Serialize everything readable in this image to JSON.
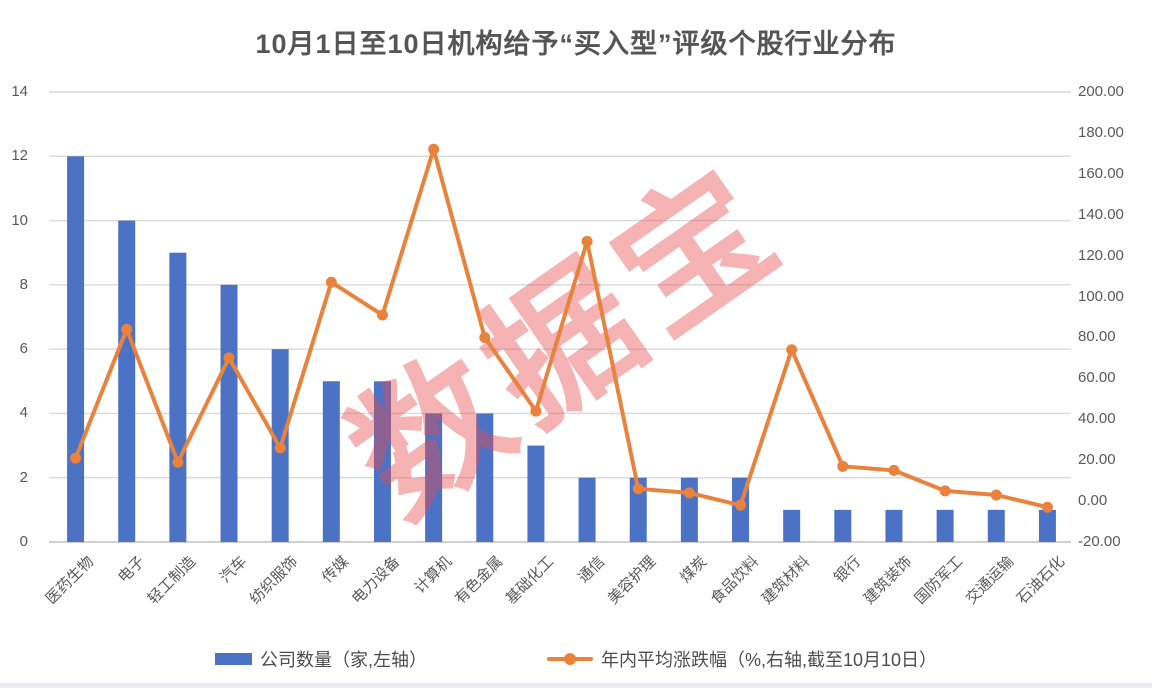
{
  "title": "10月1日至10日机构给予“买入型”评级个股行业分布",
  "watermark": "数据宝",
  "legend": {
    "bars_label": "公司数量（家,左轴）",
    "line_label": "年内平均涨跌幅（%,右轴,截至10月10日）"
  },
  "colors": {
    "bar": "#4C72C6",
    "line": "#E8823C",
    "grid": "#D9D9D9",
    "axis_line": "#C0C0C0",
    "axis_text": "#595959",
    "title_text": "#555555",
    "watermark": "rgba(230,75,75,0.42)"
  },
  "chart_data": {
    "type": "bar+line combo",
    "title": "10月1日至10日机构给予“买入型”评级个股行业分布",
    "categories": [
      "医药生物",
      "电子",
      "轻工制造",
      "汽车",
      "纺织服饰",
      "传媒",
      "电力设备",
      "计算机",
      "有色金属",
      "基础化工",
      "通信",
      "美容护理",
      "煤炭",
      "食品饮料",
      "建筑材料",
      "银行",
      "建筑装饰",
      "国防军工",
      "交通运输",
      "石油石化"
    ],
    "series": [
      {
        "name": "公司数量（家,左轴）",
        "type": "bar",
        "axis": "left",
        "values": [
          12,
          10,
          9,
          8,
          6,
          5,
          5,
          4,
          4,
          3,
          2,
          2,
          2,
          2,
          1,
          1,
          1,
          1,
          1,
          1
        ]
      },
      {
        "name": "年内平均涨跌幅（%,右轴,截至10月10日）",
        "type": "line",
        "axis": "right",
        "values": [
          21,
          84,
          19,
          70,
          26,
          107,
          91,
          172,
          80,
          44,
          127,
          6,
          4,
          -2,
          74,
          17,
          15,
          5,
          3,
          -3
        ]
      }
    ],
    "left_axis": {
      "min": 0,
      "max": 14,
      "step": 2,
      "ticks": [
        "14",
        "12",
        "10",
        "8",
        "6",
        "4",
        "2",
        "0"
      ]
    },
    "right_axis": {
      "min": -20,
      "max": 200,
      "step": 20,
      "ticks": [
        "200.00",
        "180.00",
        "160.00",
        "140.00",
        "120.00",
        "100.00",
        "80.00",
        "60.00",
        "40.00",
        "20.00",
        "0.00",
        "-20.00"
      ]
    },
    "grid": true,
    "legend_position": "bottom"
  }
}
